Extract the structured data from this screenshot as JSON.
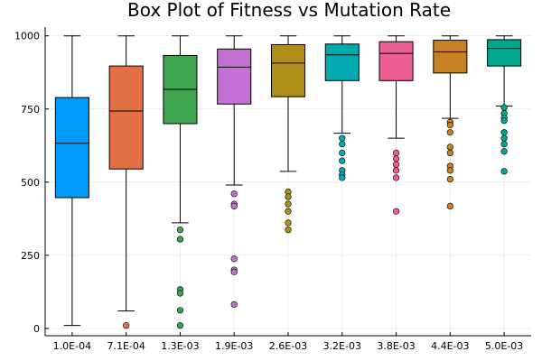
{
  "chart_data": {
    "type": "box",
    "title": "Box Plot of Fitness vs Mutation Rate",
    "xlabel": "",
    "ylabel": "",
    "ylim": [
      -25,
      1030
    ],
    "yticks": [
      0,
      250,
      500,
      750,
      1000
    ],
    "ytick_labels": [
      "0",
      "250",
      "500",
      "750",
      "1000"
    ],
    "grid": true,
    "legend": "none",
    "categories": [
      "1.0E-04",
      "7.1E-04",
      "1.3E-03",
      "1.9E-03",
      "2.6E-03",
      "3.2E-03",
      "3.8E-03",
      "4.4E-03",
      "5.0E-03"
    ],
    "colors": [
      "#009afa",
      "#e36f47",
      "#3ea44e",
      "#c371d2",
      "#ac8e18",
      "#00aaae",
      "#ed5e93",
      "#c68225",
      "#00a98d"
    ],
    "boxes": [
      {
        "category": "1.0E-04",
        "min": 10,
        "q1": 447,
        "median": 633,
        "q3": 789,
        "max": 1000,
        "outliers": []
      },
      {
        "category": "7.1E-04",
        "min": 60,
        "q1": 545,
        "median": 743,
        "q3": 897,
        "max": 1000,
        "outliers": [
          10
        ]
      },
      {
        "category": "1.3E-03",
        "min": 361,
        "q1": 700,
        "median": 817,
        "q3": 933,
        "max": 1000,
        "outliers": [
          337,
          305,
          133,
          120,
          62,
          10
        ]
      },
      {
        "category": "1.9E-03",
        "min": 490,
        "q1": 767,
        "median": 893,
        "q3": 955,
        "max": 1000,
        "outliers": [
          460,
          425,
          418,
          238,
          200,
          193,
          82
        ]
      },
      {
        "category": "2.6E-03",
        "min": 537,
        "q1": 792,
        "median": 907,
        "q3": 970,
        "max": 1000,
        "outliers": [
          467,
          450,
          425,
          400,
          361,
          337
        ]
      },
      {
        "category": "3.2E-03",
        "min": 667,
        "q1": 847,
        "median": 935,
        "q3": 972,
        "max": 1000,
        "outliers": [
          650,
          630,
          600,
          573,
          540,
          525,
          515
        ]
      },
      {
        "category": "3.8E-03",
        "min": 650,
        "q1": 847,
        "median": 940,
        "q3": 980,
        "max": 1000,
        "outliers": [
          600,
          580,
          560,
          540,
          515,
          400
        ]
      },
      {
        "category": "4.4E-03",
        "min": 718,
        "q1": 873,
        "median": 945,
        "q3": 985,
        "max": 1000,
        "outliers": [
          705,
          695,
          670,
          620,
          600,
          555,
          540,
          510,
          418
        ]
      },
      {
        "category": "5.0E-03",
        "min": 760,
        "q1": 897,
        "median": 957,
        "q3": 987,
        "max": 1000,
        "outliers": [
          755,
          735,
          720,
          710,
          670,
          650,
          630,
          605,
          537
        ]
      }
    ]
  }
}
